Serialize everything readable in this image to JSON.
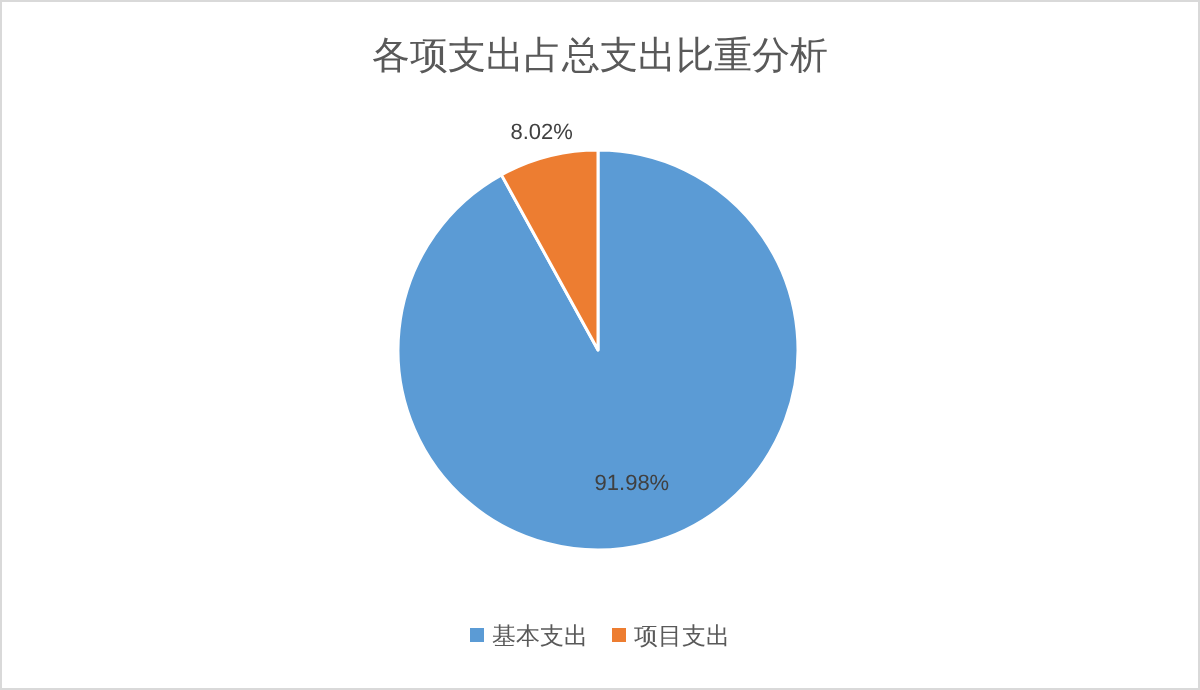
{
  "chart_data": {
    "type": "pie",
    "title": "各项支出占总支出比重分析",
    "categories": [
      "基本支出",
      "项目支出"
    ],
    "values": [
      91.98,
      8.02
    ],
    "colors": [
      "#5b9bd5",
      "#ed7d31"
    ],
    "value_labels": [
      "91.98%",
      "8.02%"
    ],
    "legend": "bottom"
  }
}
